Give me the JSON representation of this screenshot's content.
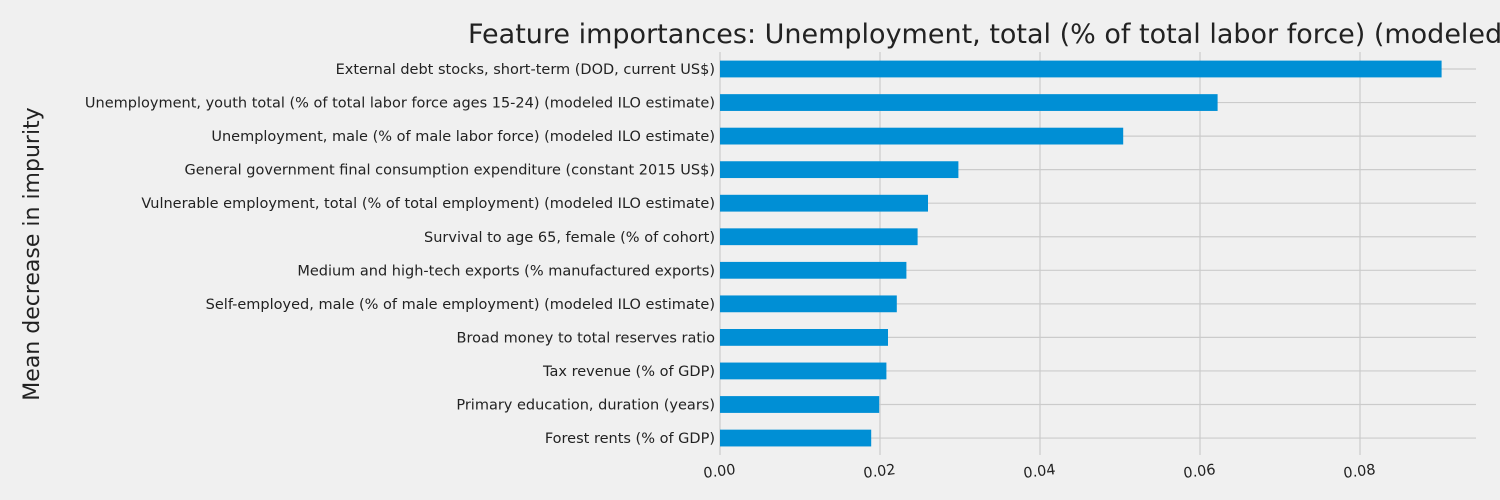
{
  "chart_data": {
    "type": "bar",
    "orientation": "horizontal",
    "title": "Feature importances: Unemployment, total (% of total labor force) (modeled ILO estimate)",
    "xlabel": "",
    "ylabel": "Mean decrease in impurity",
    "categories": [
      "External debt stocks, short-term (DOD, current US$)",
      "Unemployment, youth total (% of total labor force ages 15-24) (modeled ILO estimate)",
      "Unemployment, male (% of male labor force) (modeled ILO estimate)",
      "General government final consumption expenditure (constant 2015 US$)",
      "Vulnerable employment, total (% of total employment) (modeled ILO estimate)",
      "Survival to age 65, female (% of cohort)",
      "Medium and high-tech exports (% manufactured exports)",
      "Self-employed, male (% of male employment) (modeled ILO estimate)",
      "Broad money to total reserves ratio",
      "Tax revenue (% of GDP)",
      "Primary education, duration (years)",
      "Forest rents (% of GDP)"
    ],
    "values": [
      0.0902,
      0.0622,
      0.0504,
      0.0298,
      0.026,
      0.0247,
      0.0233,
      0.0221,
      0.021,
      0.0208,
      0.0199,
      0.0189
    ],
    "xlim": [
      0,
      0.0945
    ],
    "xticks": [
      0.0,
      0.02,
      0.04,
      0.06,
      0.08
    ],
    "xtick_labels": [
      "0.00",
      "0.02",
      "0.04",
      "0.06",
      "0.08"
    ],
    "grid": true,
    "bar_color": "#008fd5",
    "background_color": "#f0f0f0",
    "grid_color": "#cbcbcb"
  }
}
